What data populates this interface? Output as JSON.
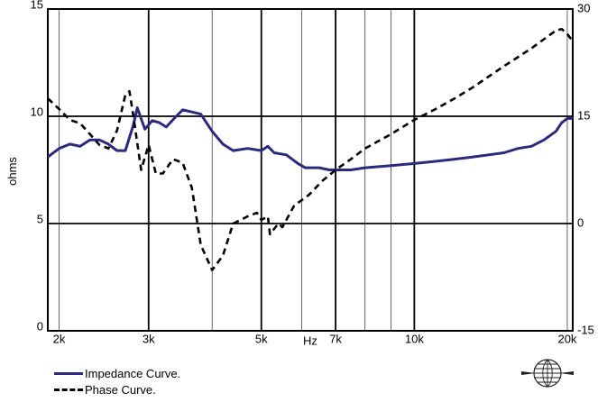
{
  "chart_data": {
    "type": "line",
    "title": "",
    "xlabel": "Hz",
    "ylabel": "ohms",
    "y2label": "",
    "xscale": "log",
    "xlim": [
      1900,
      20500
    ],
    "ylim": [
      0,
      15
    ],
    "y2lim": [
      -15,
      30
    ],
    "grid": true,
    "x_ticks": [
      {
        "value": 2000,
        "label": "2k"
      },
      {
        "value": 3000,
        "label": "3k"
      },
      {
        "value": 5000,
        "label": "5k"
      },
      {
        "value": 7000,
        "label": "7k"
      },
      {
        "value": 10000,
        "label": "10k"
      },
      {
        "value": 20000,
        "label": "20k"
      }
    ],
    "y_ticks": [
      {
        "value": 0,
        "label": "0"
      },
      {
        "value": 5,
        "label": "5"
      },
      {
        "value": 10,
        "label": "10"
      },
      {
        "value": 15,
        "label": "15"
      }
    ],
    "y2_ticks": [
      {
        "value": -15,
        "label": "-15"
      },
      {
        "value": 0,
        "label": "0"
      },
      {
        "value": 15,
        "label": "15"
      },
      {
        "value": 30,
        "label": "30"
      }
    ],
    "series": [
      {
        "name": "Impedance Curve.",
        "axis": "left",
        "color": "#2b2a7c",
        "style": "solid",
        "points": [
          [
            1900,
            8.1
          ],
          [
            2000,
            8.5
          ],
          [
            2100,
            8.7
          ],
          [
            2200,
            8.6
          ],
          [
            2300,
            8.9
          ],
          [
            2400,
            8.9
          ],
          [
            2500,
            8.7
          ],
          [
            2600,
            8.4
          ],
          [
            2700,
            8.4
          ],
          [
            2800,
            9.6
          ],
          [
            2850,
            10.4
          ],
          [
            2950,
            9.4
          ],
          [
            3050,
            9.8
          ],
          [
            3150,
            9.7
          ],
          [
            3250,
            9.5
          ],
          [
            3400,
            10.0
          ],
          [
            3500,
            10.3
          ],
          [
            3650,
            10.2
          ],
          [
            3800,
            10.1
          ],
          [
            4000,
            9.3
          ],
          [
            4200,
            8.7
          ],
          [
            4400,
            8.4
          ],
          [
            4700,
            8.5
          ],
          [
            5000,
            8.4
          ],
          [
            5150,
            8.6
          ],
          [
            5300,
            8.3
          ],
          [
            5600,
            8.2
          ],
          [
            5900,
            7.8
          ],
          [
            6100,
            7.6
          ],
          [
            6500,
            7.6
          ],
          [
            6800,
            7.5
          ],
          [
            7000,
            7.5
          ],
          [
            7500,
            7.5
          ],
          [
            8000,
            7.6
          ],
          [
            9000,
            7.7
          ],
          [
            10000,
            7.8
          ],
          [
            11000,
            7.9
          ],
          [
            12000,
            8.0
          ],
          [
            13000,
            8.1
          ],
          [
            14000,
            8.2
          ],
          [
            15000,
            8.3
          ],
          [
            16000,
            8.5
          ],
          [
            17000,
            8.6
          ],
          [
            18000,
            8.9
          ],
          [
            19000,
            9.3
          ],
          [
            19500,
            9.7
          ],
          [
            20000,
            9.9
          ],
          [
            20500,
            9.9
          ]
        ]
      },
      {
        "name": "Phase Curve.",
        "axis": "right",
        "color": "#000000",
        "style": "dashed",
        "points": [
          [
            1900,
            17.5
          ],
          [
            2000,
            16.0
          ],
          [
            2100,
            14.5
          ],
          [
            2200,
            14.0
          ],
          [
            2300,
            12.5
          ],
          [
            2400,
            11.0
          ],
          [
            2500,
            10.5
          ],
          [
            2600,
            13.0
          ],
          [
            2700,
            18.0
          ],
          [
            2750,
            18.5
          ],
          [
            2800,
            15.0
          ],
          [
            2900,
            7.5
          ],
          [
            3000,
            11.0
          ],
          [
            3100,
            7.0
          ],
          [
            3200,
            7.0
          ],
          [
            3350,
            9.0
          ],
          [
            3500,
            8.5
          ],
          [
            3650,
            5.0
          ],
          [
            3800,
            -3.0
          ],
          [
            4000,
            -6.5
          ],
          [
            4200,
            -4.5
          ],
          [
            4400,
            0.0
          ],
          [
            4700,
            1.0
          ],
          [
            4900,
            1.5
          ],
          [
            5000,
            0.5
          ],
          [
            5150,
            1.0
          ],
          [
            5200,
            -1.5
          ],
          [
            5400,
            0.0
          ],
          [
            5500,
            -0.5
          ],
          [
            5800,
            2.5
          ],
          [
            6200,
            4.0
          ],
          [
            6600,
            6.0
          ],
          [
            7000,
            7.5
          ],
          [
            7500,
            9.0
          ],
          [
            8000,
            10.5
          ],
          [
            9000,
            12.5
          ],
          [
            10000,
            14.5
          ],
          [
            11000,
            16.0
          ],
          [
            12000,
            17.5
          ],
          [
            13000,
            19.0
          ],
          [
            15000,
            22.0
          ],
          [
            17000,
            24.5
          ],
          [
            19000,
            27.0
          ],
          [
            19500,
            27.2
          ],
          [
            20000,
            26.5
          ],
          [
            20500,
            25.5
          ]
        ]
      }
    ]
  },
  "legend": {
    "impedance_label": "Impedance Curve.",
    "phase_label": "Phase Curve."
  },
  "logo": {
    "icon": "brand-globe-logo"
  }
}
